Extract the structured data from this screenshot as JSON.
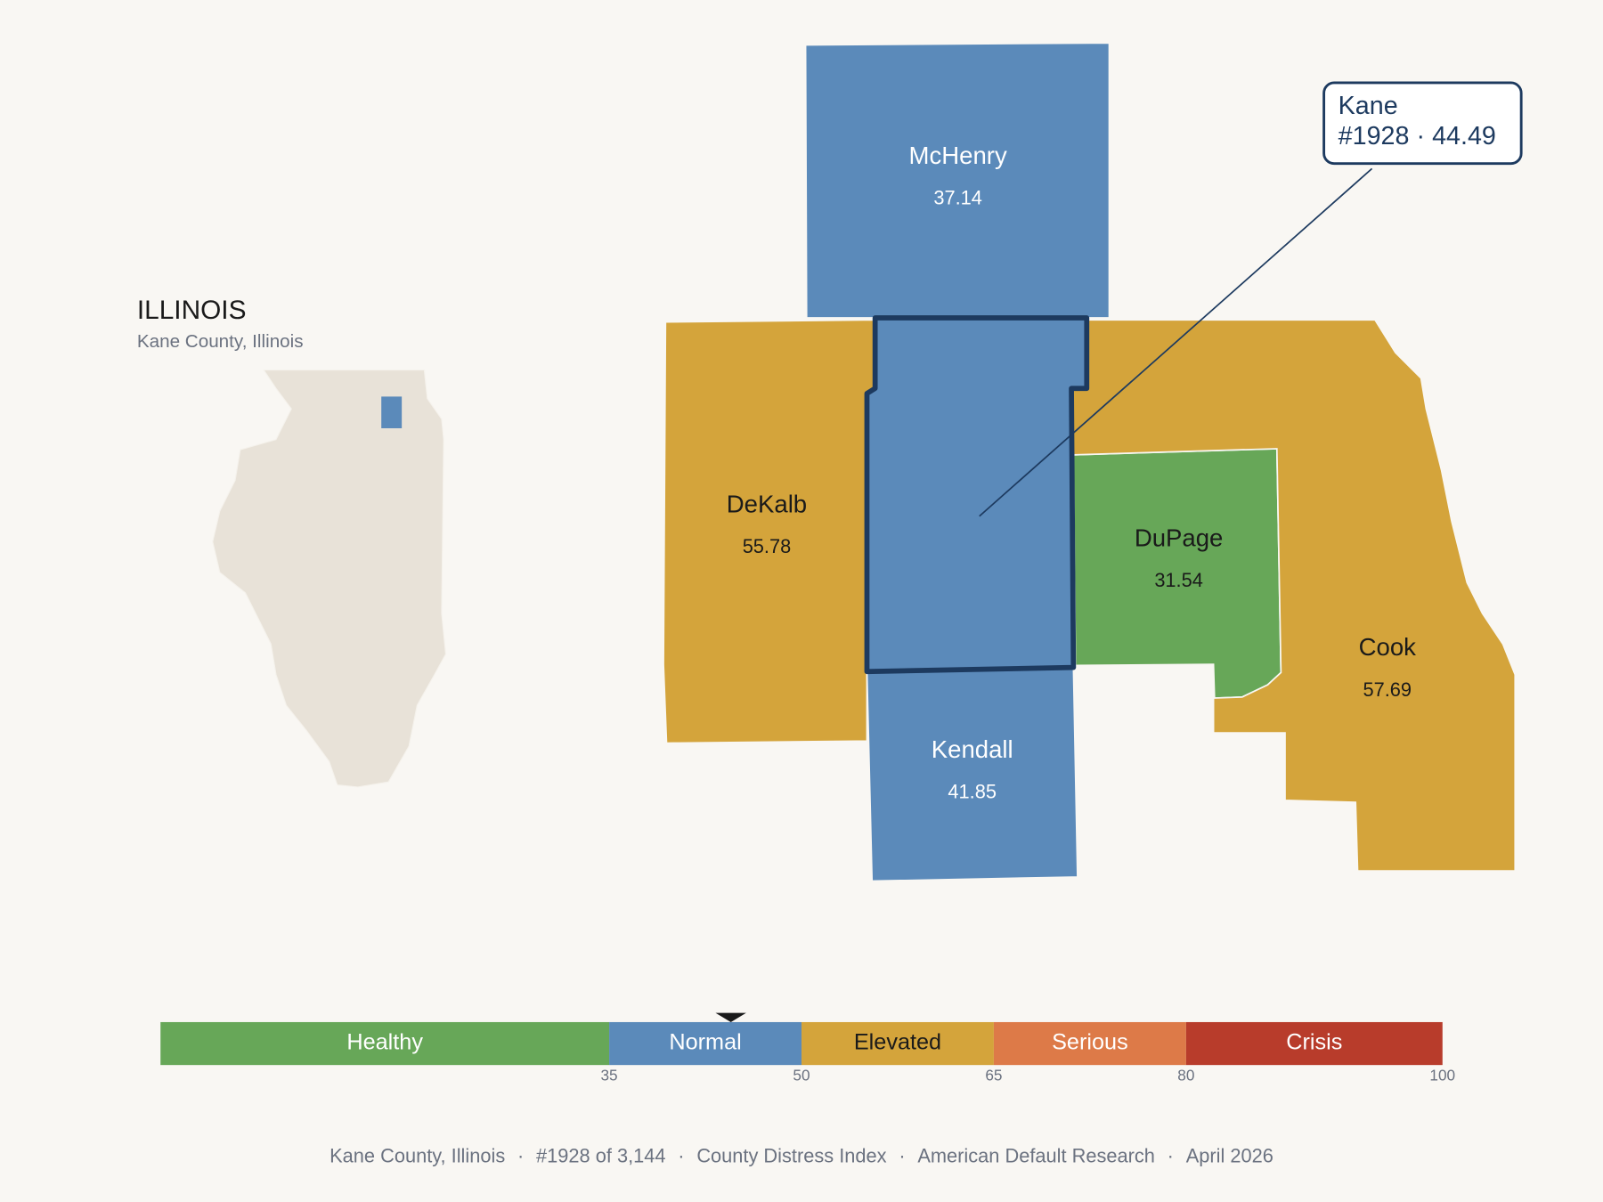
{
  "inset": {
    "title": "ILLINOIS",
    "subtitle": "Kane County, Illinois"
  },
  "counties": [
    {
      "name": "McHenry",
      "value": 37.14
    },
    {
      "name": "DeKalb",
      "value": 55.78
    },
    {
      "name": "Kane",
      "value": 44.49
    },
    {
      "name": "DuPage",
      "value": 31.54
    },
    {
      "name": "Cook",
      "value": 57.69
    },
    {
      "name": "Kendall",
      "value": 41.85
    }
  ],
  "callout": {
    "name": "Kane",
    "rank": "#1928",
    "separator": "·",
    "value": 44.49
  },
  "legend": {
    "range": [
      0,
      100
    ],
    "ticks": [
      35,
      50,
      65,
      80,
      100
    ],
    "bands": [
      {
        "label": "Healthy",
        "color": "#67a758"
      },
      {
        "label": "Normal",
        "color": "#5b8aba"
      },
      {
        "label": "Elevated",
        "color": "#d4a43b"
      },
      {
        "label": "Serious",
        "color": "#dd7a48"
      },
      {
        "label": "Crisis",
        "color": "#b83c2b"
      }
    ]
  },
  "footer": {
    "separator": "·",
    "items": [
      "Kane County, Illinois",
      "#1928 of 3,144",
      "County Distress Index",
      "American Default Research",
      "April 2026"
    ]
  }
}
